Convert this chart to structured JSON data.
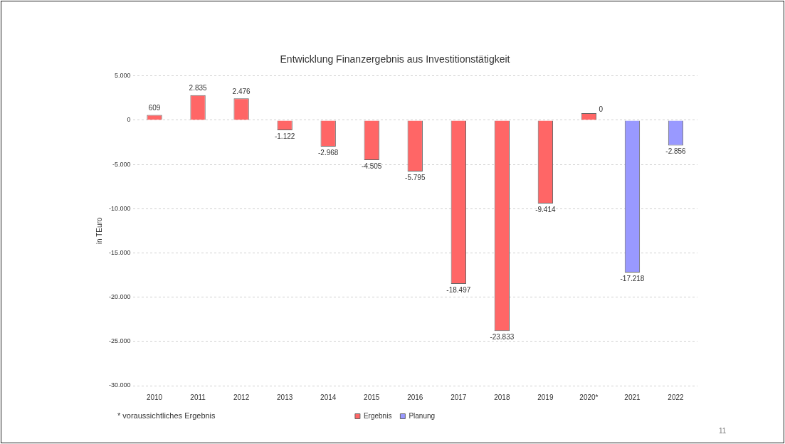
{
  "chart_data": {
    "type": "bar",
    "title": "Entwicklung Finanzergebnis aus Investitionstätigkeit",
    "ylabel": "in TEuro",
    "categories": [
      "2010",
      "2011",
      "2012",
      "2013",
      "2014",
      "2015",
      "2016",
      "2017",
      "2018",
      "2019",
      "2020*",
      "2021",
      "2022"
    ],
    "series": [
      {
        "name": "Ergebnis",
        "color": "#ff6666",
        "values": [
          609,
          2835,
          2476,
          -1122,
          -2968,
          -4505,
          -5795,
          -18497,
          -23833,
          -9414,
          800,
          null,
          null
        ],
        "value_labels": [
          "609",
          "2.835",
          "2.476",
          "-1.122",
          "-2.968",
          "-4.505",
          "-5.795",
          "-18.497",
          "-23.833",
          "-9.414",
          null,
          null,
          null
        ]
      },
      {
        "name": "Planung",
        "color": "#9999ff",
        "values": [
          null,
          null,
          null,
          null,
          null,
          null,
          null,
          null,
          null,
          null,
          null,
          -17218,
          -2856
        ],
        "value_labels": [
          null,
          null,
          null,
          null,
          null,
          null,
          null,
          null,
          null,
          null,
          null,
          "-17.218",
          "-2.856"
        ]
      }
    ],
    "ylim": [
      -30000,
      5000
    ],
    "yticks": [
      {
        "value": 5000,
        "label": "5.000"
      },
      0,
      {
        "value": -5000,
        "label": "-5.000"
      },
      {
        "value": -10000,
        "label": "-10.000"
      },
      {
        "value": -15000,
        "label": "-15.000"
      },
      {
        "value": -20000,
        "label": "-20.000"
      },
      {
        "value": -25000,
        "label": "-25.000"
      },
      {
        "value": -30000,
        "label": "-30.000"
      }
    ],
    "grid": "y",
    "legend": "bottom",
    "annotations": [
      "* voraussichtliches  Ergebnis",
      "11",
      {
        "text": "0",
        "x": "2020*",
        "y": 800
      }
    ]
  }
}
